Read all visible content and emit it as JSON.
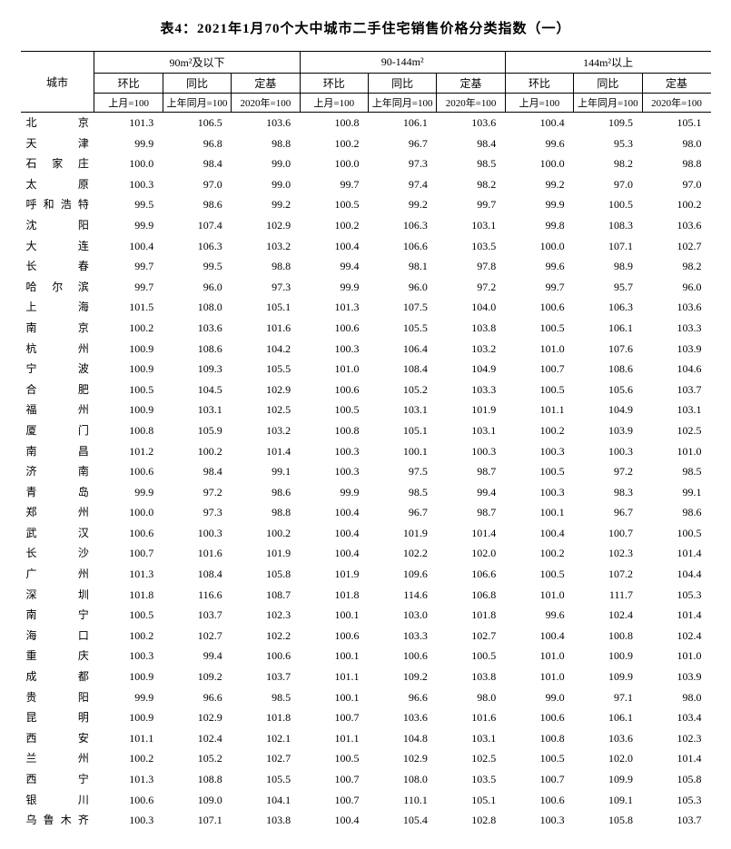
{
  "title": "表4：2021年1月70个大中城市二手住宅销售价格分类指数（一）",
  "headers": {
    "city": "城市",
    "groups": [
      "90m²及以下",
      "90-144m²",
      "144m²以上"
    ],
    "subs": [
      "环比",
      "同比",
      "定基"
    ],
    "bases": [
      "上月=100",
      "上年同月=100",
      "2020年=100"
    ]
  },
  "rows": [
    {
      "city": "北　　京",
      "v": [
        101.3,
        106.5,
        103.6,
        100.8,
        106.1,
        103.6,
        100.4,
        109.5,
        105.1
      ]
    },
    {
      "city": "天　　津",
      "v": [
        99.9,
        96.8,
        98.8,
        100.2,
        96.7,
        98.4,
        99.6,
        95.3,
        98.0
      ]
    },
    {
      "city": "石 家 庄",
      "v": [
        100.0,
        98.4,
        99.0,
        100.0,
        97.3,
        98.5,
        100.0,
        98.2,
        98.8
      ]
    },
    {
      "city": "太　　原",
      "v": [
        100.3,
        97.0,
        99.0,
        99.7,
        97.4,
        98.2,
        99.2,
        97.0,
        97.0
      ]
    },
    {
      "city": "呼和浩特",
      "v": [
        99.5,
        98.6,
        99.2,
        100.5,
        99.2,
        99.7,
        99.9,
        100.5,
        100.2
      ]
    },
    {
      "city": "沈　　阳",
      "v": [
        99.9,
        107.4,
        102.9,
        100.2,
        106.3,
        103.1,
        99.8,
        108.3,
        103.6
      ]
    },
    {
      "city": "大　　连",
      "v": [
        100.4,
        106.3,
        103.2,
        100.4,
        106.6,
        103.5,
        100.0,
        107.1,
        102.7
      ]
    },
    {
      "city": "长　　春",
      "v": [
        99.7,
        99.5,
        98.8,
        99.4,
        98.1,
        97.8,
        99.6,
        98.9,
        98.2
      ]
    },
    {
      "city": "哈 尔 滨",
      "v": [
        99.7,
        96.0,
        97.3,
        99.9,
        96.0,
        97.2,
        99.7,
        95.7,
        96.0
      ]
    },
    {
      "city": "上　　海",
      "v": [
        101.5,
        108.0,
        105.1,
        101.3,
        107.5,
        104.0,
        100.6,
        106.3,
        103.6
      ]
    },
    {
      "city": "南　　京",
      "v": [
        100.2,
        103.6,
        101.6,
        100.6,
        105.5,
        103.8,
        100.5,
        106.1,
        103.3
      ]
    },
    {
      "city": "杭　　州",
      "v": [
        100.9,
        108.6,
        104.2,
        100.3,
        106.4,
        103.2,
        101.0,
        107.6,
        103.9
      ]
    },
    {
      "city": "宁　　波",
      "v": [
        100.9,
        109.3,
        105.5,
        101.0,
        108.4,
        104.9,
        100.7,
        108.6,
        104.6
      ]
    },
    {
      "city": "合　　肥",
      "v": [
        100.5,
        104.5,
        102.9,
        100.6,
        105.2,
        103.3,
        100.5,
        105.6,
        103.7
      ]
    },
    {
      "city": "福　　州",
      "v": [
        100.9,
        103.1,
        102.5,
        100.5,
        103.1,
        101.9,
        101.1,
        104.9,
        103.1
      ]
    },
    {
      "city": "厦　　门",
      "v": [
        100.8,
        105.9,
        103.2,
        100.8,
        105.1,
        103.1,
        100.2,
        103.9,
        102.5
      ]
    },
    {
      "city": "南　　昌",
      "v": [
        101.2,
        100.2,
        101.4,
        100.3,
        100.1,
        100.3,
        100.3,
        100.3,
        101.0
      ]
    },
    {
      "city": "济　　南",
      "v": [
        100.6,
        98.4,
        99.1,
        100.3,
        97.5,
        98.7,
        100.5,
        97.2,
        98.5
      ]
    },
    {
      "city": "青　　岛",
      "v": [
        99.9,
        97.2,
        98.6,
        99.9,
        98.5,
        99.4,
        100.3,
        98.3,
        99.1
      ]
    },
    {
      "city": "郑　　州",
      "v": [
        100.0,
        97.3,
        98.8,
        100.4,
        96.7,
        98.7,
        100.1,
        96.7,
        98.6
      ]
    },
    {
      "city": "武　　汉",
      "v": [
        100.6,
        100.3,
        100.2,
        100.4,
        101.9,
        101.4,
        100.4,
        100.7,
        100.5
      ]
    },
    {
      "city": "长　　沙",
      "v": [
        100.7,
        101.6,
        101.9,
        100.4,
        102.2,
        102.0,
        100.2,
        102.3,
        101.4
      ]
    },
    {
      "city": "广　　州",
      "v": [
        101.3,
        108.4,
        105.8,
        101.9,
        109.6,
        106.6,
        100.5,
        107.2,
        104.4
      ]
    },
    {
      "city": "深　　圳",
      "v": [
        101.8,
        116.6,
        108.7,
        101.8,
        114.6,
        106.8,
        101.0,
        111.7,
        105.3
      ]
    },
    {
      "city": "南　　宁",
      "v": [
        100.5,
        103.7,
        102.3,
        100.1,
        103.0,
        101.8,
        99.6,
        102.4,
        101.4
      ]
    },
    {
      "city": "海　　口",
      "v": [
        100.2,
        102.7,
        102.2,
        100.6,
        103.3,
        102.7,
        100.4,
        100.8,
        102.4
      ]
    },
    {
      "city": "重　　庆",
      "v": [
        100.3,
        99.4,
        100.6,
        100.1,
        100.6,
        100.5,
        101.0,
        100.9,
        101.0
      ]
    },
    {
      "city": "成　　都",
      "v": [
        100.9,
        109.2,
        103.7,
        101.1,
        109.2,
        103.8,
        101.0,
        109.9,
        103.9
      ]
    },
    {
      "city": "贵　　阳",
      "v": [
        99.9,
        96.6,
        98.5,
        100.1,
        96.6,
        98.0,
        99.0,
        97.1,
        98.0
      ]
    },
    {
      "city": "昆　　明",
      "v": [
        100.9,
        102.9,
        101.8,
        100.7,
        103.6,
        101.6,
        100.6,
        106.1,
        103.4
      ]
    },
    {
      "city": "西　　安",
      "v": [
        101.1,
        102.4,
        102.1,
        101.1,
        104.8,
        103.1,
        100.8,
        103.6,
        102.3
      ]
    },
    {
      "city": "兰　　州",
      "v": [
        100.2,
        105.2,
        102.7,
        100.5,
        102.9,
        102.5,
        100.5,
        102.0,
        101.4
      ]
    },
    {
      "city": "西　　宁",
      "v": [
        101.3,
        108.8,
        105.5,
        100.7,
        108.0,
        103.5,
        100.7,
        109.9,
        105.8
      ]
    },
    {
      "city": "银　　川",
      "v": [
        100.6,
        109.0,
        104.1,
        100.7,
        110.1,
        105.1,
        100.6,
        109.1,
        105.3
      ]
    },
    {
      "city": "乌鲁木齐",
      "v": [
        100.3,
        107.1,
        103.8,
        100.4,
        105.4,
        102.8,
        100.3,
        105.8,
        103.7
      ]
    }
  ]
}
